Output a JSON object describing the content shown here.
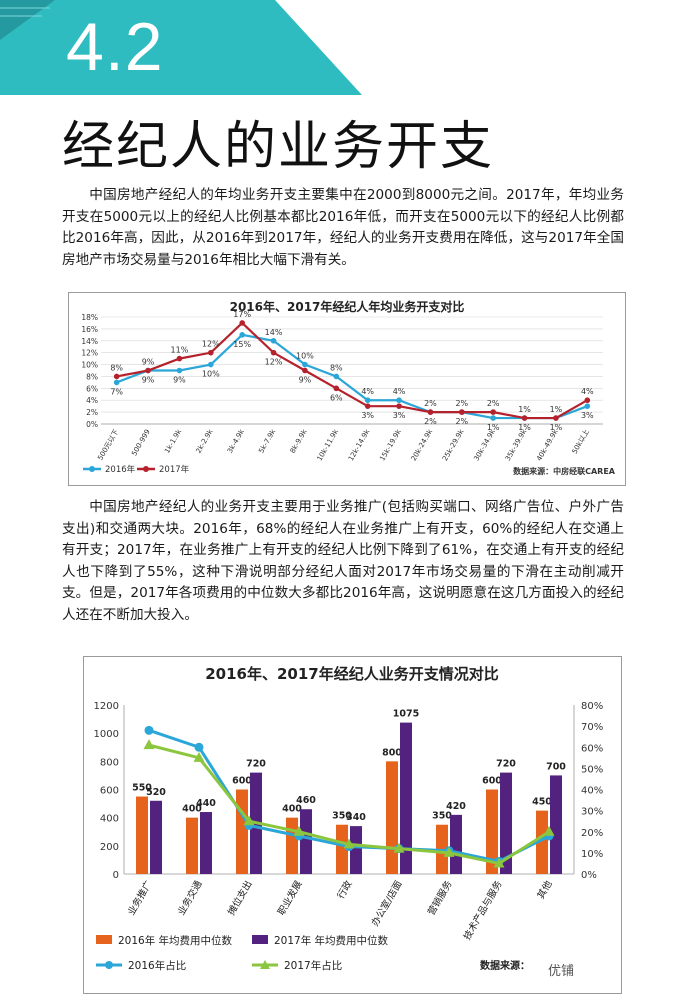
{
  "header": {
    "section_number": "4.2",
    "title": "经纪人的业务开支"
  },
  "paragraphs": [
    "中国房地产经纪人的年均业务开支主要集中在2000到8000元之间。2017年，年均业务开支在5000元以上的经纪人比例基本都比2016年低，而开支在5000元以下的经纪人比例都比2016年高，因此，从2016年到2017年，经纪人的业务开支费用在降低，这与2017年全国房地产市场交易量与2016年相比大幅下滑有关。",
    "中国房地产经纪人的业务开支主要用于业务推广(包括购买端口、网络广告位、户外广告支出)和交通两大块。2016年，68%的经纪人在业务推广上有开支，60%的经纪人在交通上有开支；2017年，在业务推广上有开支的经纪人比例下降到了61%，在交通上有开支的经纪人也下降到了55%，这种下滑说明部分经纪人面对2017年市场交易量的下滑在主动削减开支。但是，2017年各项费用的中位数大多都比2016年高，这说明愿意在这几方面投入的经纪人还在不断加大投入。"
  ],
  "colors": {
    "band": "#2fbcc0",
    "blue": "#2aa6d8",
    "red": "#b5222b",
    "orange": "#e5631c",
    "purple": "#53227e",
    "green": "#8cc63f"
  },
  "chart_data": [
    {
      "type": "line",
      "title": "2016年、2017年经纪人年均业务开支对比",
      "categories": [
        "500元以下",
        "500-999",
        "1k-1.9k",
        "2k-2.9k",
        "3k-4.9k",
        "5k-7.9k",
        "8k-9.9k",
        "10k-11.9k",
        "12k-14.9k",
        "15k-19.9k",
        "20k-24.9k",
        "25k-29.9k",
        "30k-34.9k",
        "35k-39.9k",
        "40k-49.9k",
        "50k以上"
      ],
      "series": [
        {
          "name": "2016年",
          "values": [
            7,
            9,
            9,
            10,
            15,
            14,
            10,
            8,
            4,
            4,
            2,
            2,
            1,
            1,
            1,
            3
          ],
          "labels": [
            "7%",
            "9%",
            "9%",
            "10%",
            "15%",
            "14%",
            "10%",
            "8%",
            "4%",
            "4%",
            "2%",
            "2%",
            "1%",
            "1%",
            "1%",
            "3%"
          ]
        },
        {
          "name": "2017年",
          "values": [
            8,
            9,
            11,
            12,
            17,
            12,
            9,
            6,
            3,
            3,
            2,
            2,
            2,
            1,
            1,
            4
          ],
          "labels": [
            "8%",
            "9%",
            "11%",
            "12%",
            "17%",
            "12%",
            "9%",
            "6%",
            "3%",
            "3%",
            "2%",
            "2%",
            "2%",
            "1%",
            "1%",
            "4%"
          ]
        }
      ],
      "y_ticks": [
        "0%",
        "2%",
        "4%",
        "6%",
        "8%",
        "10%",
        "12%",
        "14%",
        "16%",
        "18%"
      ],
      "ylim": [
        0,
        18
      ],
      "grid": true,
      "legend": "bottom-left",
      "source": "数据来源：中房经联CAREA"
    },
    {
      "type": "bar",
      "title": "2016年、2017年经纪人业务开支情况对比",
      "categories": [
        "业务推广",
        "业务交通",
        "摊位支出",
        "职业发展",
        "行政",
        "办公室/店面",
        "营销服务",
        "技术产品与服务",
        "其他"
      ],
      "series": [
        {
          "name": "2016年 年均费用中位数",
          "kind": "bar",
          "values": [
            550,
            400,
            600,
            400,
            350,
            800,
            350,
            600,
            450
          ],
          "labels": [
            "550",
            "400",
            "600",
            "400",
            "350",
            "800",
            "350",
            "600",
            "450"
          ]
        },
        {
          "name": "2017年 年均费用中位数",
          "kind": "bar",
          "values": [
            520,
            440,
            720,
            460,
            340,
            1075,
            420,
            720,
            700
          ],
          "labels": [
            "520",
            "440",
            "720",
            "460",
            "340",
            "1075",
            "420",
            "720",
            "700"
          ]
        },
        {
          "name": "2016年占比",
          "kind": "line",
          "axis": "right",
          "values": [
            68,
            60,
            23,
            18,
            13,
            12,
            11,
            6,
            18
          ]
        },
        {
          "name": "2017年占比",
          "kind": "line",
          "axis": "right",
          "values": [
            61,
            55,
            25,
            20,
            14,
            12,
            10,
            5,
            20
          ]
        }
      ],
      "y_left_ticks": [
        "0",
        "200",
        "400",
        "600",
        "800",
        "1000",
        "1200"
      ],
      "y_right_ticks": [
        "0%",
        "10%",
        "20%",
        "30%",
        "40%",
        "50%",
        "60%",
        "70%",
        "80%"
      ],
      "ylim_left": [
        0,
        1200
      ],
      "ylim_right": [
        0,
        80
      ],
      "legend": "bottom",
      "source": "数据来源："
    }
  ],
  "watermark": "优铺"
}
